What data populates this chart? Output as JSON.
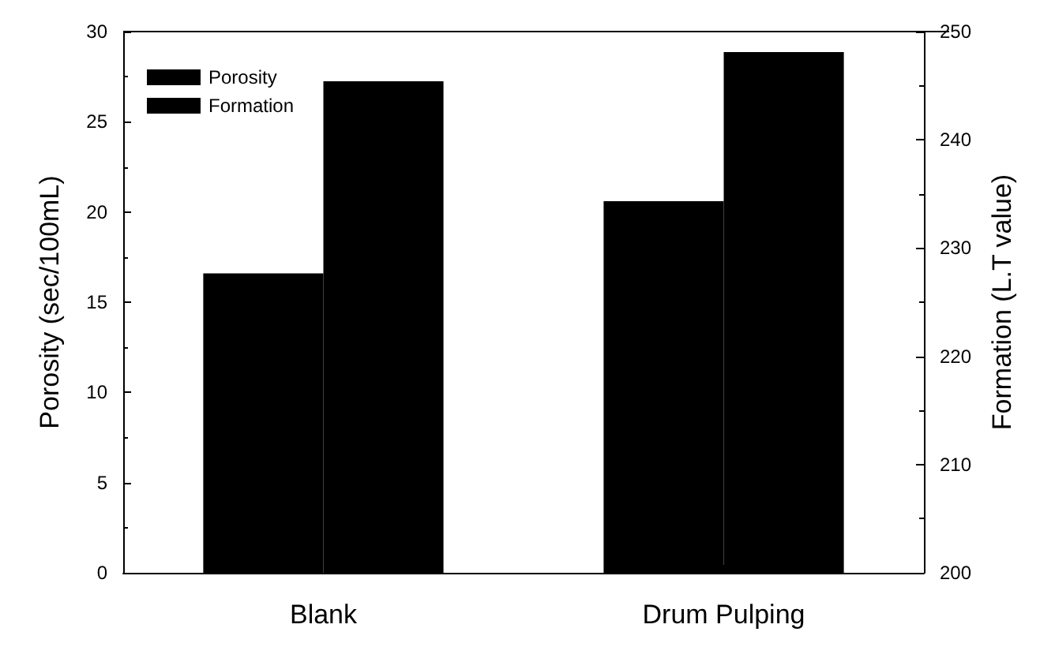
{
  "chart_data": {
    "type": "bar",
    "categories": [
      "Blank",
      "Drum Pulping"
    ],
    "ylabel": "Porosity (sec/100mL)",
    "y2label": "Formation (L.T value)",
    "series": [
      {
        "name": "Porosity",
        "color": "#000000",
        "values": [
          16.6,
          20.6
        ]
      },
      {
        "name": "Formation",
        "color": "#000000",
        "values": [
          245.4,
          248.1
        ],
        "axis": "y2"
      }
    ],
    "ylim": [
      0,
      30
    ],
    "yticks": [
      0,
      5,
      10,
      15,
      20,
      25,
      30
    ],
    "y2lim": [
      200,
      250
    ],
    "y2ticks": [
      200,
      210,
      220,
      230,
      240,
      250
    ],
    "legend": "top left",
    "grid": false
  }
}
